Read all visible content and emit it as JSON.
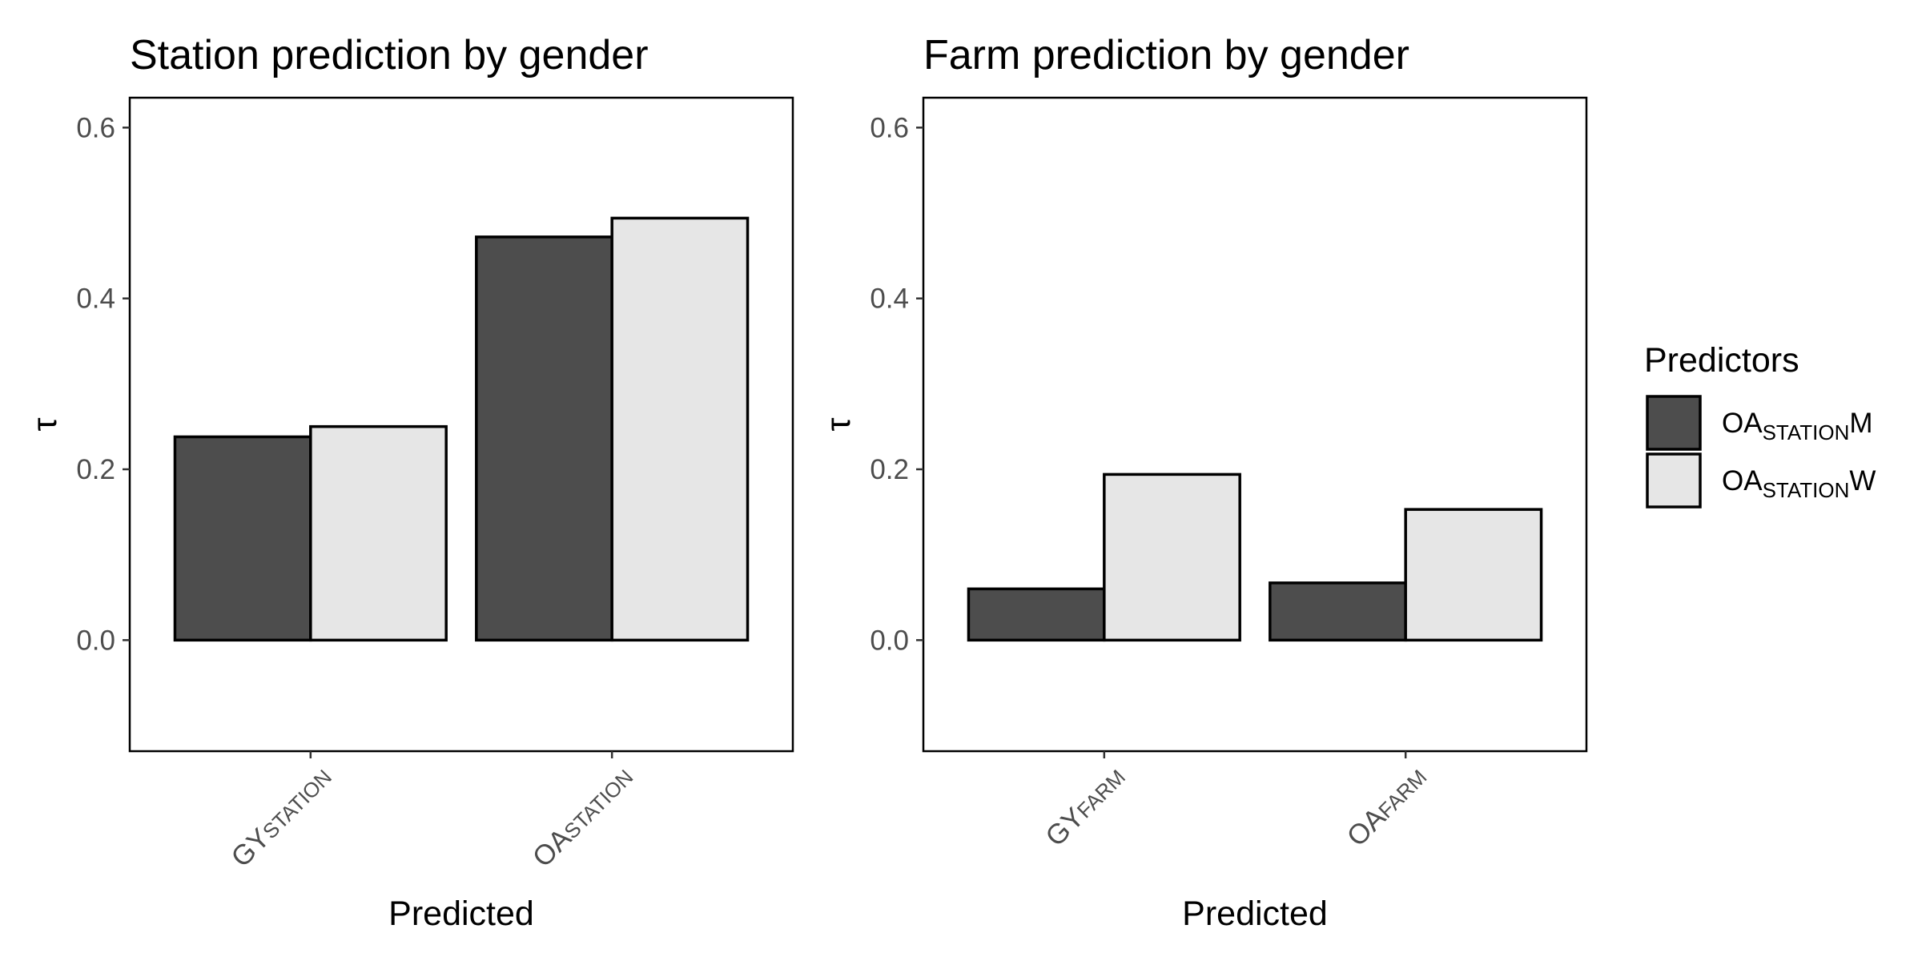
{
  "chart_data": [
    {
      "type": "bar",
      "title": "Station prediction by gender",
      "xlabel": "Predicted",
      "ylabel": "τ",
      "categories": [
        {
          "main": "GY",
          "sub": "STATION"
        },
        {
          "main": "OA",
          "sub": "STATION"
        }
      ],
      "series": [
        {
          "values": [
            0.238,
            0.472
          ]
        },
        {
          "values": [
            0.25,
            0.494
          ]
        }
      ],
      "ylim": [
        -0.13,
        0.635
      ],
      "yticks": [
        "0.0",
        "0.2",
        "0.4",
        "0.6"
      ],
      "ytick_values": [
        0,
        0.2,
        0.4,
        0.6
      ],
      "grid": false
    },
    {
      "type": "bar",
      "title": "Farm prediction by gender",
      "xlabel": "Predicted",
      "ylabel": "τ",
      "categories": [
        {
          "main": "GY",
          "sub": "FARM"
        },
        {
          "main": "OA",
          "sub": "FARM"
        }
      ],
      "series": [
        {
          "values": [
            0.06,
            0.067
          ]
        },
        {
          "values": [
            0.194,
            0.153
          ]
        }
      ],
      "ylim": [
        -0.13,
        0.635
      ],
      "yticks": [
        "0.0",
        "0.2",
        "0.4",
        "0.6"
      ],
      "ytick_values": [
        0,
        0.2,
        0.4,
        0.6
      ],
      "grid": false
    }
  ],
  "legend": {
    "title": "Predictors",
    "placement": "right",
    "items": [
      {
        "main": "OA",
        "sub": "STATION",
        "suffix": "M",
        "color": "#4d4d4d"
      },
      {
        "main": "OA",
        "sub": "STATION",
        "suffix": "W",
        "color": "#e6e6e6"
      }
    ]
  },
  "colors": {
    "series_0": "#4d4d4d",
    "series_1": "#e6e6e6",
    "outline": "#000000"
  }
}
